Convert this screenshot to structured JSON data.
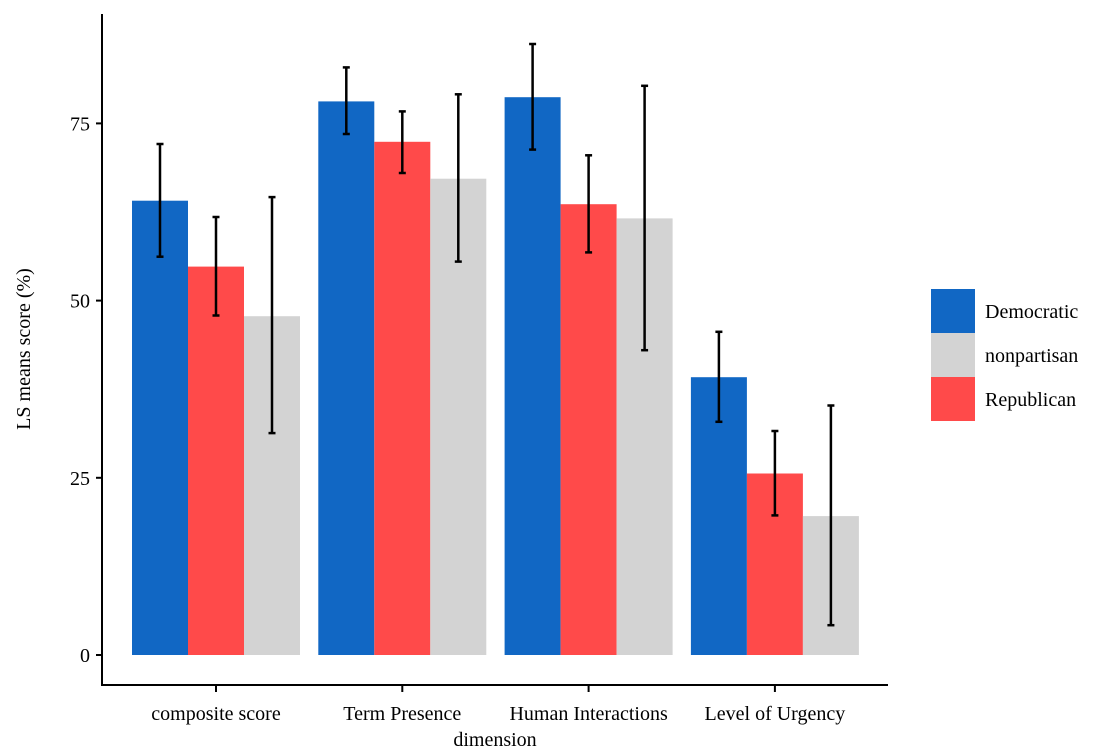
{
  "chart_data": {
    "type": "bar",
    "title": "",
    "xlabel": "dimension",
    "ylabel": "LS means score (%)",
    "ylim": [
      0,
      94
    ],
    "yticks": [
      "0",
      "25",
      "50",
      "75"
    ],
    "categories": [
      "composite score",
      "Term Presence",
      "Human Interactions",
      "Level of Urgency"
    ],
    "legend_position": "right",
    "grid": false,
    "series": [
      {
        "name": "Democratic",
        "color": "#1167C4",
        "values": [
          64.1,
          78.1,
          78.7,
          39.2
        ],
        "error_low": [
          56.2,
          73.5,
          71.3,
          32.9
        ],
        "error_high": [
          72.1,
          82.9,
          86.2,
          45.6
        ]
      },
      {
        "name": "nonpartisan",
        "color": "#D3D3D3",
        "values": [
          47.8,
          67.2,
          61.6,
          19.6
        ],
        "error_low": [
          31.3,
          55.5,
          43.0,
          4.2
        ],
        "error_high": [
          64.6,
          79.1,
          80.3,
          35.2
        ]
      },
      {
        "name": "Republican",
        "color": "#FF4A4A",
        "values": [
          54.8,
          72.4,
          63.6,
          25.6
        ],
        "error_low": [
          47.9,
          68.0,
          56.8,
          19.7
        ],
        "error_high": [
          61.8,
          76.7,
          70.5,
          31.6
        ]
      }
    ],
    "bar_order": [
      "Democratic",
      "Republican",
      "nonpartisan"
    ]
  }
}
